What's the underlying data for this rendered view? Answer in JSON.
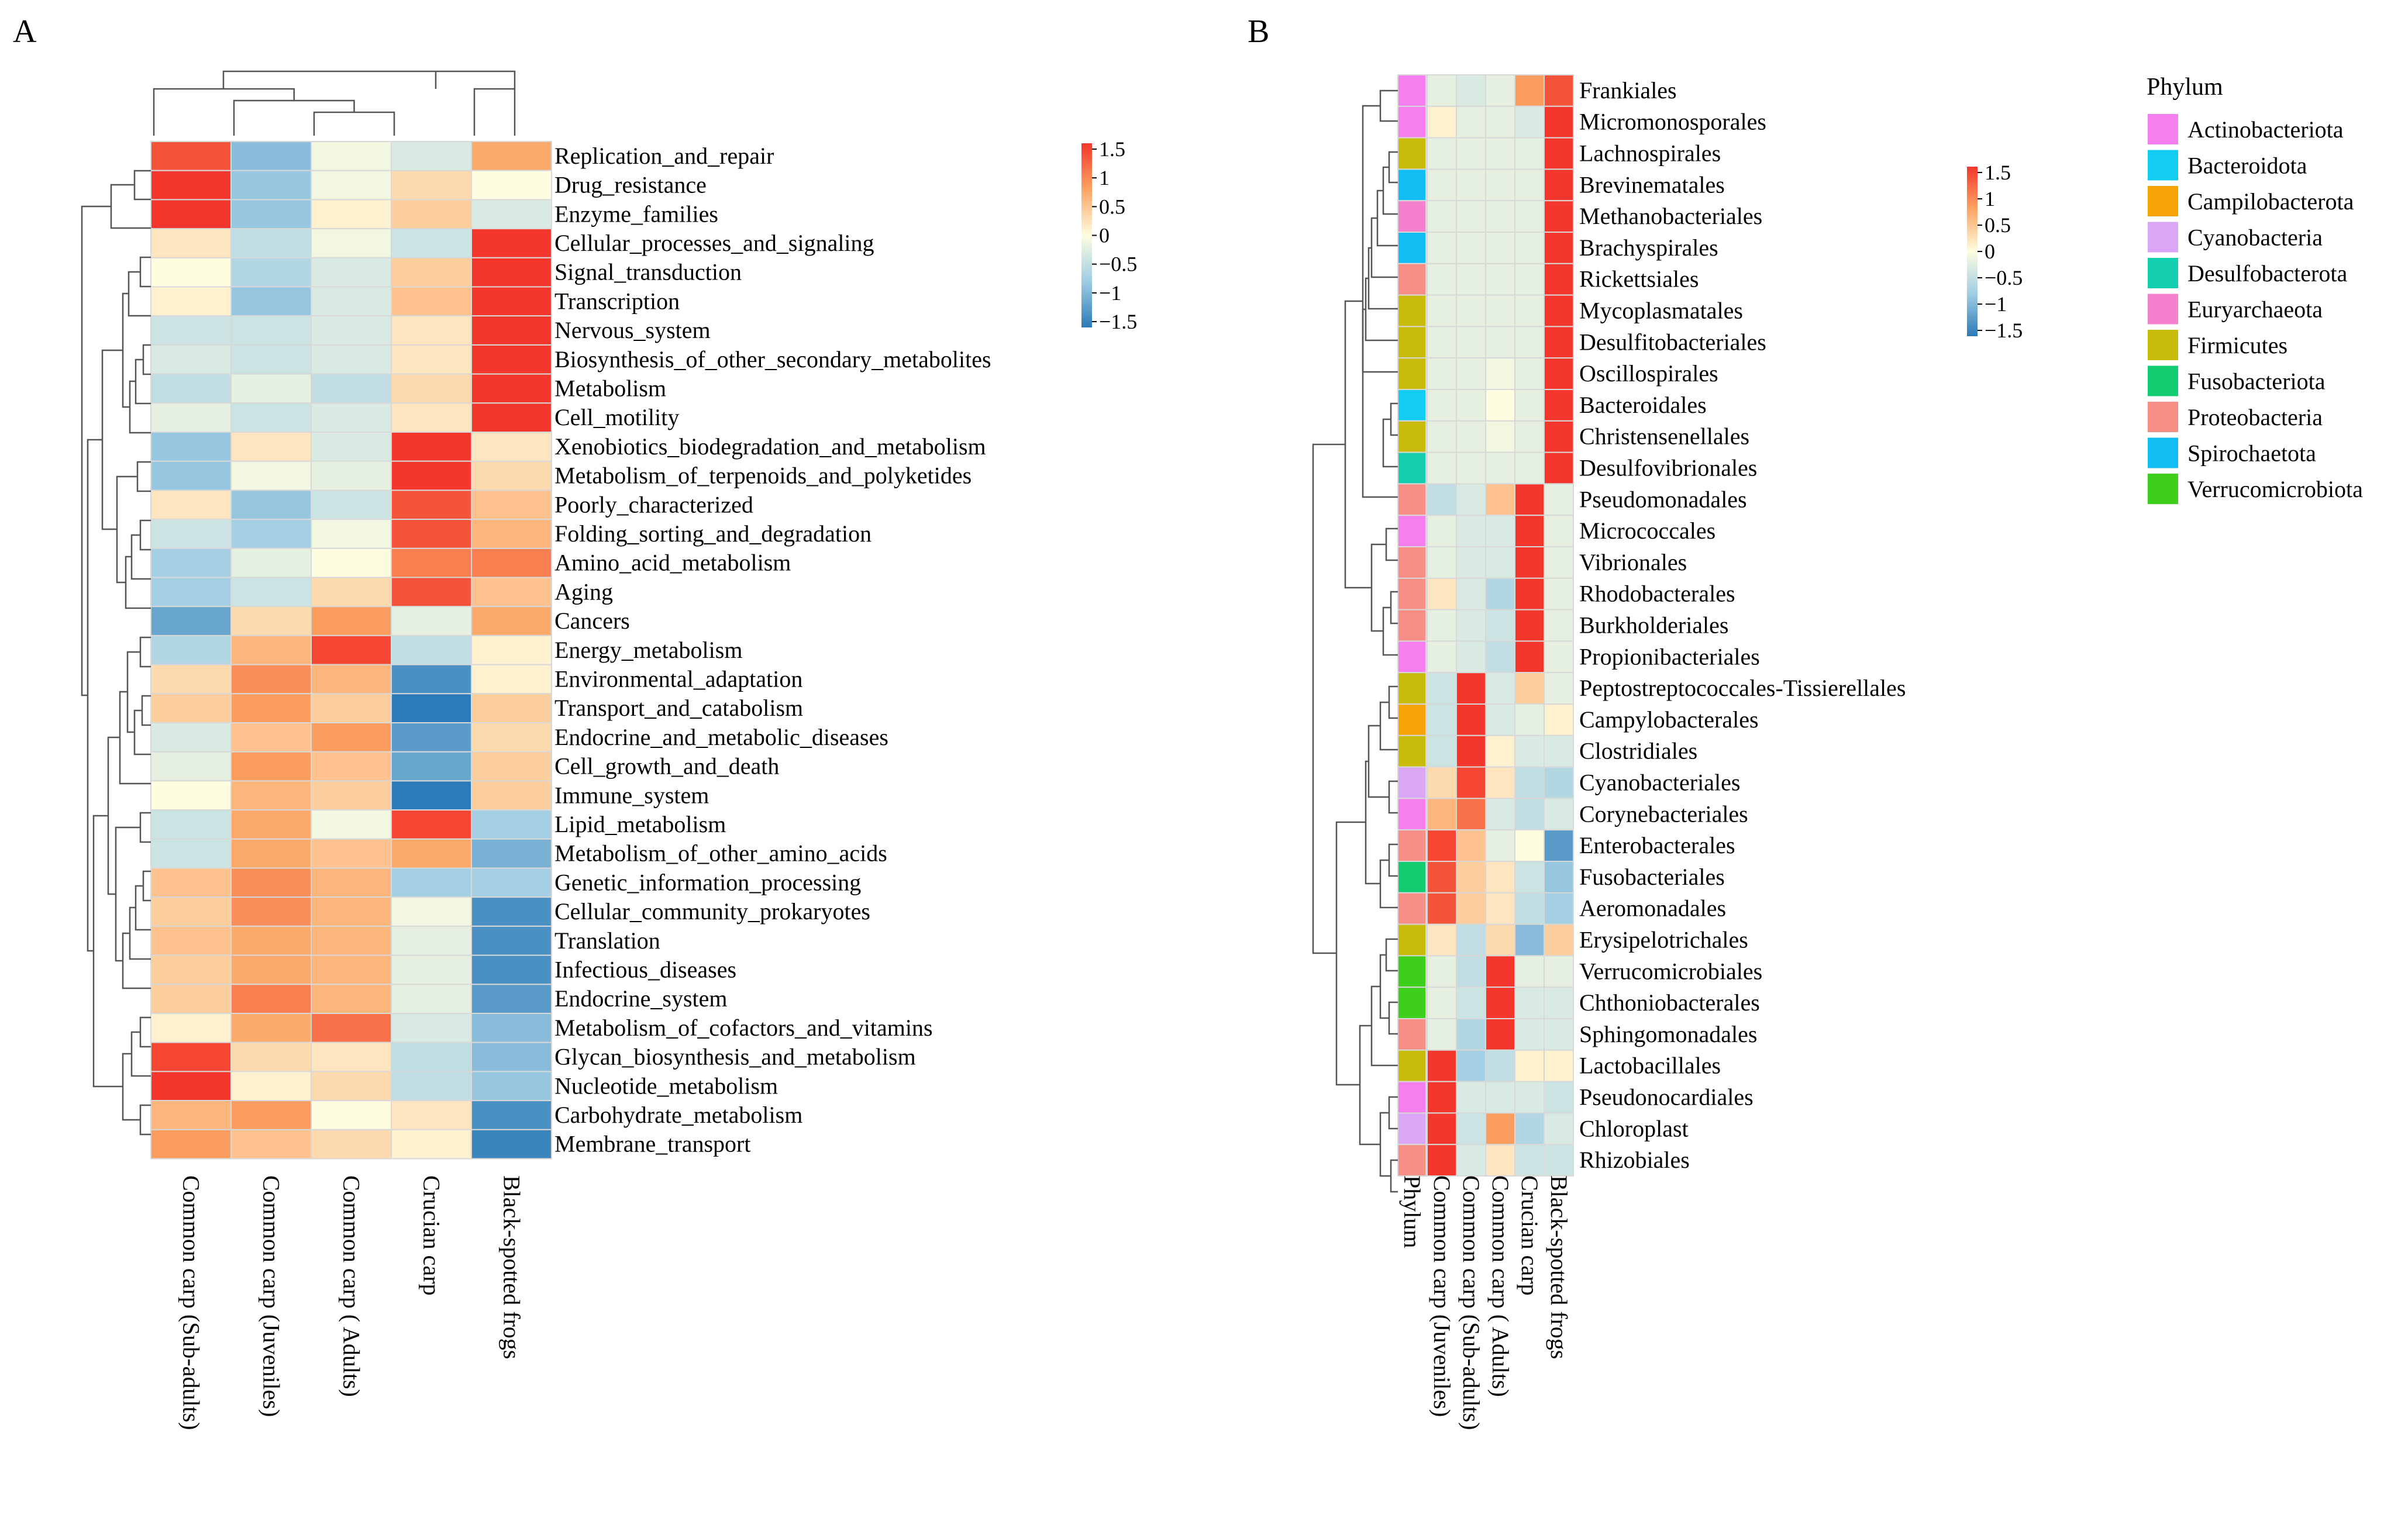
{
  "chart_data": [
    {
      "type": "heatmap",
      "panel_label": "A",
      "columns": [
        "Common carp (Sub-adults)",
        "Common carp (Juveniles)",
        "Common carp ( Adults)",
        "Crucian carp",
        "Black-spotted frogs"
      ],
      "rows": [
        "Replication_and_repair",
        "Drug_resistance",
        "Enzyme_families",
        "Cellular_processes_and_signaling",
        "Signal_transduction",
        "Transcription",
        "Nervous_system",
        "Biosynthesis_of_other_secondary_metabolites",
        "Metabolism",
        "Cell_motility",
        "Xenobiotics_biodegradation_and_metabolism",
        "Metabolism_of_terpenoids_and_polyketides",
        "Poorly_characterized",
        "Folding_sorting_and_degradation",
        "Amino_acid_metabolism",
        "Aging",
        "Cancers",
        "Energy_metabolism",
        "Environmental_adaptation",
        "Transport_and_catabolism",
        "Endocrine_and_metabolic_diseases",
        "Cell_growth_and_death",
        "Immune_system",
        "Lipid_metabolism",
        "Metabolism_of_other_amino_acids",
        "Genetic_information_processing",
        "Cellular_community_prokaryotes",
        "Translation",
        "Infectious_diseases",
        "Endocrine_system",
        "Metabolism_of_cofactors_and_vitamins",
        "Glycan_biosynthesis_and_metabolism",
        "Nucleotide_metabolism",
        "Carbohydrate_metabolism",
        "Membrane_transport"
      ],
      "values": [
        [
          1.3,
          -0.9,
          -0.1,
          -0.3,
          0.7
        ],
        [
          1.6,
          -0.8,
          -0.1,
          0.3,
          0.0
        ],
        [
          1.6,
          -0.8,
          0.1,
          0.4,
          -0.3
        ],
        [
          0.2,
          -0.5,
          -0.1,
          -0.4,
          1.7
        ],
        [
          0.0,
          -0.6,
          -0.3,
          0.4,
          1.6
        ],
        [
          0.1,
          -0.8,
          -0.3,
          0.5,
          1.6
        ],
        [
          -0.4,
          -0.4,
          -0.3,
          0.2,
          1.7
        ],
        [
          -0.3,
          -0.4,
          -0.3,
          0.2,
          1.7
        ],
        [
          -0.5,
          -0.2,
          -0.5,
          0.3,
          1.7
        ],
        [
          -0.2,
          -0.4,
          -0.3,
          0.2,
          1.7
        ],
        [
          -0.8,
          0.2,
          -0.3,
          1.7,
          0.2
        ],
        [
          -0.8,
          -0.1,
          -0.2,
          1.7,
          0.3
        ],
        [
          0.2,
          -0.8,
          -0.4,
          1.3,
          0.5
        ],
        [
          -0.4,
          -0.7,
          -0.1,
          1.3,
          0.6
        ],
        [
          -0.7,
          -0.2,
          0.0,
          1.0,
          1.0
        ],
        [
          -0.7,
          -0.4,
          0.3,
          1.3,
          0.5
        ],
        [
          -1.1,
          0.3,
          0.8,
          -0.2,
          0.7
        ],
        [
          -0.6,
          0.6,
          1.4,
          -0.5,
          0.1
        ],
        [
          0.3,
          0.9,
          0.6,
          -1.3,
          0.1
        ],
        [
          0.4,
          0.8,
          0.4,
          -1.5,
          0.4
        ],
        [
          -0.3,
          0.5,
          0.8,
          -1.2,
          0.3
        ],
        [
          -0.2,
          0.8,
          0.5,
          -1.1,
          0.4
        ],
        [
          0.0,
          0.6,
          0.4,
          -1.5,
          0.4
        ],
        [
          -0.4,
          0.7,
          -0.1,
          1.4,
          -0.7
        ],
        [
          -0.4,
          0.7,
          0.5,
          0.7,
          -1.0
        ],
        [
          0.5,
          0.9,
          0.6,
          -0.7,
          -0.7
        ],
        [
          0.4,
          0.9,
          0.6,
          -0.1,
          -1.3
        ],
        [
          0.5,
          0.7,
          0.6,
          -0.2,
          -1.3
        ],
        [
          0.4,
          0.7,
          0.6,
          -0.2,
          -1.3
        ],
        [
          0.4,
          1.0,
          0.6,
          -0.2,
          -1.2
        ],
        [
          0.1,
          0.7,
          1.1,
          -0.3,
          -0.9
        ],
        [
          1.4,
          0.3,
          0.2,
          -0.5,
          -0.9
        ],
        [
          1.6,
          0.1,
          0.3,
          -0.5,
          -0.8
        ],
        [
          0.6,
          0.8,
          0.0,
          0.2,
          -1.3
        ],
        [
          0.8,
          0.5,
          0.3,
          0.1,
          -1.4
        ]
      ],
      "color_scale": {
        "min": -1.5,
        "max": 1.5,
        "ticks": [
          "1.5",
          "1",
          "0.5",
          "0",
          "−0.5",
          "−1",
          "−1.5"
        ]
      }
    },
    {
      "type": "heatmap",
      "panel_label": "B",
      "columns": [
        "Common carp (Juveniles)",
        "Common carp (Sub-adults)",
        "Common carp ( Adults)",
        "Crucian carp",
        "Black-spotted frogs"
      ],
      "annotation_column_label": "Phylum",
      "rows": [
        "Frankiales",
        "Micromonosporales",
        "Lachnospirales",
        "Brevinematales",
        "Methanobacteriales",
        "Brachyspirales",
        "Rickettsiales",
        "Mycoplasmatales",
        "Desulfitobacteriales",
        "Oscillospirales",
        "Bacteroidales",
        "Christensenellales",
        "Desulfovibrionales",
        "Pseudomonadales",
        "Micrococcales",
        "Vibrionales",
        "Rhodobacterales",
        "Burkholderiales",
        "Propionibacteriales",
        "Peptostreptococcales-Tissierellales",
        "Campylobacterales",
        "Clostridiales",
        "Cyanobacteriales",
        "Corynebacteriales",
        "Enterobacterales",
        "Fusobacteriales",
        "Aeromonadales",
        "Erysipelotrichales",
        "Verrucomicrobiales",
        "Chthoniobacterales",
        "Sphingomonadales",
        "Lactobacillales",
        "Pseudonocardiales",
        "Chloroplast",
        "Rhizobiales"
      ],
      "row_phylum": [
        "Actinobacteriota",
        "Actinobacteriota",
        "Firmicutes",
        "Spirochaetota",
        "Euryarchaeota",
        "Spirochaetota",
        "Proteobacteria",
        "Firmicutes",
        "Firmicutes",
        "Firmicutes",
        "Bacteroidota",
        "Firmicutes",
        "Desulfobacterota",
        "Proteobacteria",
        "Actinobacteriota",
        "Proteobacteria",
        "Proteobacteria",
        "Proteobacteria",
        "Actinobacteriota",
        "Firmicutes",
        "Campilobacterota",
        "Firmicutes",
        "Cyanobacteria",
        "Actinobacteriota",
        "Proteobacteria",
        "Fusobacteriota",
        "Proteobacteria",
        "Firmicutes",
        "Verrucomicrobiota",
        "Verrucomicrobiota",
        "Proteobacteria",
        "Firmicutes",
        "Actinobacteriota",
        "Cyanobacteria",
        "Proteobacteria"
      ],
      "values": [
        [
          -0.2,
          -0.3,
          -0.2,
          0.8,
          1.3
        ],
        [
          0.1,
          -0.2,
          -0.2,
          -0.3,
          1.8
        ],
        [
          -0.2,
          -0.2,
          -0.2,
          -0.2,
          1.8
        ],
        [
          -0.2,
          -0.2,
          -0.2,
          -0.2,
          1.8
        ],
        [
          -0.2,
          -0.2,
          -0.2,
          -0.2,
          1.8
        ],
        [
          -0.2,
          -0.2,
          -0.2,
          -0.2,
          1.8
        ],
        [
          -0.2,
          -0.2,
          -0.2,
          -0.2,
          1.8
        ],
        [
          -0.2,
          -0.2,
          -0.2,
          -0.2,
          1.8
        ],
        [
          -0.2,
          -0.2,
          -0.2,
          -0.2,
          1.8
        ],
        [
          -0.2,
          -0.2,
          -0.1,
          -0.2,
          1.8
        ],
        [
          -0.2,
          -0.2,
          0.0,
          -0.2,
          1.8
        ],
        [
          -0.2,
          -0.2,
          -0.1,
          -0.2,
          1.8
        ],
        [
          -0.2,
          -0.2,
          -0.2,
          -0.2,
          1.8
        ],
        [
          -0.5,
          -0.3,
          0.5,
          1.5,
          -0.2
        ],
        [
          -0.2,
          -0.3,
          -0.3,
          1.8,
          -0.2
        ],
        [
          -0.2,
          -0.3,
          -0.3,
          1.8,
          -0.2
        ],
        [
          0.2,
          -0.3,
          -0.6,
          1.8,
          -0.2
        ],
        [
          -0.2,
          -0.3,
          -0.4,
          1.8,
          -0.2
        ],
        [
          -0.2,
          -0.3,
          -0.5,
          1.8,
          -0.2
        ],
        [
          -0.4,
          1.8,
          -0.3,
          0.4,
          -0.2
        ],
        [
          -0.4,
          1.8,
          -0.3,
          -0.2,
          0.1
        ],
        [
          -0.4,
          1.8,
          0.1,
          -0.3,
          -0.3
        ],
        [
          0.3,
          1.4,
          0.2,
          -0.5,
          -0.6
        ],
        [
          0.6,
          1.1,
          -0.3,
          -0.5,
          -0.3
        ],
        [
          1.4,
          0.5,
          -0.2,
          0.0,
          -1.2
        ],
        [
          1.3,
          0.4,
          0.2,
          -0.4,
          -0.8
        ],
        [
          1.3,
          0.4,
          0.2,
          -0.5,
          -0.7
        ],
        [
          0.2,
          -0.5,
          0.3,
          -0.9,
          0.4
        ],
        [
          -0.2,
          -0.5,
          1.6,
          -0.2,
          -0.2
        ],
        [
          -0.2,
          -0.4,
          1.8,
          -0.3,
          -0.3
        ],
        [
          -0.2,
          -0.6,
          1.8,
          -0.3,
          -0.3
        ],
        [
          1.8,
          -0.7,
          -0.5,
          0.1,
          0.1
        ],
        [
          1.8,
          -0.3,
          -0.3,
          -0.3,
          -0.4
        ],
        [
          1.8,
          -0.4,
          0.8,
          -0.6,
          -0.3
        ],
        [
          1.8,
          -0.3,
          0.2,
          -0.4,
          -0.4
        ]
      ],
      "color_scale": {
        "min": -1.5,
        "max": 1.5,
        "ticks": [
          "1.5",
          "1",
          "0.5",
          "0",
          "−0.5",
          "−1",
          "−1.5"
        ]
      },
      "legend": {
        "title": "Phylum",
        "entries": [
          {
            "label": "Actinobacteriota",
            "color": "#f67ff0"
          },
          {
            "label": "Bacteroidota",
            "color": "#12cdf1"
          },
          {
            "label": "Campilobacterota",
            "color": "#f6a405"
          },
          {
            "label": "Cyanobacteria",
            "color": "#dba6f6"
          },
          {
            "label": "Desulfobacterota",
            "color": "#14cfb0"
          },
          {
            "label": "Euryarchaeota",
            "color": "#f47fcd"
          },
          {
            "label": "Firmicutes",
            "color": "#c8bb0a"
          },
          {
            "label": "Fusobacteriota",
            "color": "#13cc72"
          },
          {
            "label": "Proteobacteria",
            "color": "#f78e86"
          },
          {
            "label": "Spirochaetota",
            "color": "#10bef3"
          },
          {
            "label": "Verrucomicrobiota",
            "color": "#3ecf1c"
          }
        ]
      }
    }
  ]
}
